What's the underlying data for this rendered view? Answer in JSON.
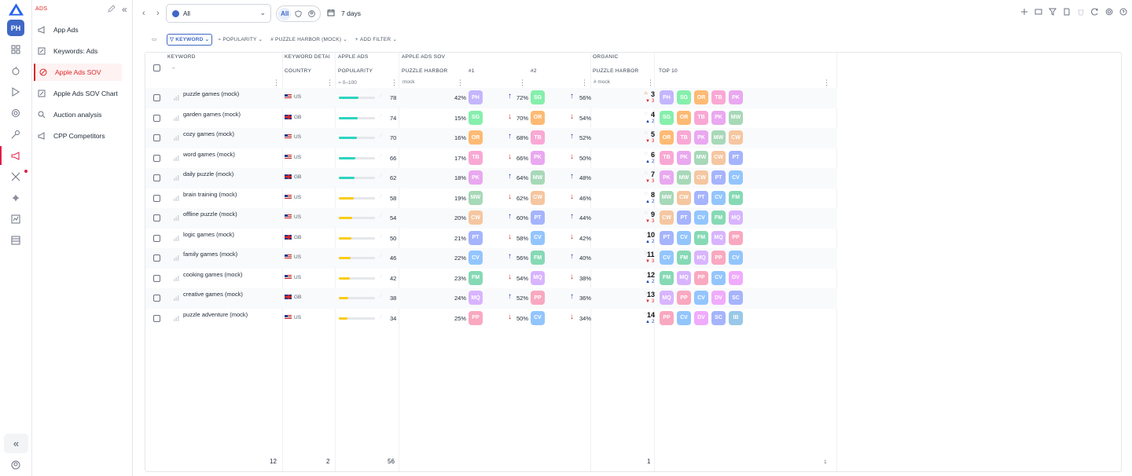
{
  "sidebar": {
    "header": "ADS",
    "items": [
      {
        "label": "App Ads",
        "icon": "megaphone-icon"
      },
      {
        "label": "Keywords: Ads",
        "icon": "edit-icon"
      },
      {
        "label": "Apple Ads SOV",
        "icon": "target-icon",
        "active": true
      },
      {
        "label": "Apple Ads SOV Chart",
        "icon": "edit-icon"
      },
      {
        "label": "Auction analysis",
        "icon": "search-icon"
      },
      {
        "label": "CPP Competitors",
        "icon": "megaphone-icon"
      }
    ]
  },
  "rail": {
    "avatar": "PH"
  },
  "topbar": {
    "scope_value": "All",
    "segment_all": "All",
    "date_range": "7 days"
  },
  "filters": {
    "keyword": "KEYWORD",
    "popularity": "POPULARITY",
    "puzzle_harbor": "PUZZLE HARBOR (MOCK)",
    "add_filter": "ADD FILTER"
  },
  "grid": {
    "groups": {
      "apple_ads": "APPLE ADS",
      "apple_ads_sov": "APPLE ADS SOV",
      "organic": "ORGANIC"
    },
    "headers": {
      "keyword": "KEYWORD",
      "keyword_details": "KEYWORD DETAI",
      "country": "COUNTRY",
      "popularity": "POPULARITY",
      "puzzle_harbor": "PUZZLE HARBOR",
      "rank1": "#1",
      "rank2": "#2",
      "organic_puzzle_harbor": "PUZZLE HARBOR",
      "top10": "TOP 10"
    },
    "subheaders": {
      "keyword_sort": "–",
      "popularity_range": "0–100",
      "sov_label": "mock",
      "organic_label": "mock"
    },
    "rows": [
      {
        "keyword": "puzzle games (mock)",
        "country": "US",
        "flag": "us",
        "popularity": 78,
        "sov": "42%",
        "c1": "PH",
        "d1": "up",
        "v1": "72%",
        "c2": "SG",
        "d2": "up",
        "v2": "56%",
        "rank": "3",
        "rankicon": "fire",
        "move": "3",
        "movedir": "down",
        "top10": [
          "PH",
          "SG",
          "OR",
          "TB",
          "PK"
        ]
      },
      {
        "keyword": "garden games (mock)",
        "country": "GB",
        "flag": "gb",
        "popularity": 74,
        "sov": "15%",
        "c1": "SG",
        "d1": "down",
        "v1": "70%",
        "c2": "OR",
        "d2": "down",
        "v2": "54%",
        "rank": "4",
        "rankicon": "star",
        "move": "2",
        "movedir": "up",
        "top10": [
          "SG",
          "OR",
          "TB",
          "PK",
          "MW"
        ]
      },
      {
        "keyword": "cozy games (mock)",
        "country": "US",
        "flag": "us",
        "popularity": 70,
        "sov": "16%",
        "c1": "OR",
        "d1": "up",
        "v1": "68%",
        "c2": "TB",
        "d2": "up",
        "v2": "52%",
        "rank": "5",
        "rankicon": "star",
        "move": "3",
        "movedir": "down",
        "top10": [
          "OR",
          "TB",
          "PK",
          "MW",
          "CW"
        ]
      },
      {
        "keyword": "word games (mock)",
        "country": "US",
        "flag": "us",
        "popularity": 66,
        "sov": "17%",
        "c1": "TB",
        "d1": "down",
        "v1": "66%",
        "c2": "PK",
        "d2": "down",
        "v2": "50%",
        "rank": "6",
        "rankicon": "star",
        "move": "2",
        "movedir": "up",
        "top10": [
          "TB",
          "PK",
          "MW",
          "CW",
          "PT"
        ]
      },
      {
        "keyword": "daily puzzle (mock)",
        "country": "GB",
        "flag": "gb",
        "popularity": 62,
        "sov": "18%",
        "c1": "PK",
        "d1": "up",
        "v1": "64%",
        "c2": "MW",
        "d2": "up",
        "v2": "48%",
        "rank": "7",
        "rankicon": "star",
        "move": "3",
        "movedir": "down",
        "top10": [
          "PK",
          "MW",
          "CW",
          "PT",
          "CV"
        ]
      },
      {
        "keyword": "brain training (mock)",
        "country": "US",
        "flag": "us",
        "popularity": 58,
        "sov": "19%",
        "c1": "MW",
        "d1": "down",
        "v1": "62%",
        "c2": "CW",
        "d2": "down",
        "v2": "46%",
        "rank": "8",
        "rankicon": "star",
        "move": "2",
        "movedir": "up",
        "top10": [
          "MW",
          "CW",
          "PT",
          "CV",
          "FM"
        ]
      },
      {
        "keyword": "offline puzzle (mock)",
        "country": "US",
        "flag": "us",
        "popularity": 54,
        "sov": "20%",
        "c1": "CW",
        "d1": "up",
        "v1": "60%",
        "c2": "PT",
        "d2": "up",
        "v2": "44%",
        "rank": "9",
        "rankicon": "star",
        "move": "3",
        "movedir": "down",
        "top10": [
          "CW",
          "PT",
          "CV",
          "FM",
          "MQ"
        ]
      },
      {
        "keyword": "logic games (mock)",
        "country": "GB",
        "flag": "gb",
        "popularity": 50,
        "sov": "21%",
        "c1": "PT",
        "d1": "down",
        "v1": "58%",
        "c2": "CV",
        "d2": "down",
        "v2": "42%",
        "rank": "10",
        "rankicon": "star",
        "move": "2",
        "movedir": "up",
        "top10": [
          "PT",
          "CV",
          "FM",
          "MQ",
          "PP"
        ]
      },
      {
        "keyword": "family games (mock)",
        "country": "US",
        "flag": "us",
        "popularity": 46,
        "sov": "22%",
        "c1": "CV",
        "d1": "up",
        "v1": "56%",
        "c2": "FM",
        "d2": "up",
        "v2": "40%",
        "rank": "11",
        "rankicon": "star",
        "move": "3",
        "movedir": "down",
        "top10": [
          "CV",
          "FM",
          "MQ",
          "PP",
          "CV"
        ]
      },
      {
        "keyword": "cooking games (mock)",
        "country": "US",
        "flag": "us",
        "popularity": 42,
        "sov": "23%",
        "c1": "FM",
        "d1": "down",
        "v1": "54%",
        "c2": "MQ",
        "d2": "down",
        "v2": "38%",
        "rank": "12",
        "rankicon": "star",
        "move": "2",
        "movedir": "up",
        "top10": [
          "FM",
          "MQ",
          "PP",
          "CV",
          "DV"
        ]
      },
      {
        "keyword": "creative games (mock)",
        "country": "GB",
        "flag": "gb",
        "popularity": 38,
        "sov": "24%",
        "c1": "MQ",
        "d1": "up",
        "v1": "52%",
        "c2": "PP",
        "d2": "up",
        "v2": "36%",
        "rank": "13",
        "rankicon": "star",
        "move": "3",
        "movedir": "down",
        "top10": [
          "MQ",
          "PP",
          "CV",
          "DV",
          "SC"
        ]
      },
      {
        "keyword": "puzzle adventure (mock)",
        "country": "US",
        "flag": "us",
        "popularity": 34,
        "sov": "25%",
        "c1": "PP",
        "d1": "down",
        "v1": "50%",
        "c2": "CV",
        "d2": "down",
        "v2": "34%",
        "rank": "14",
        "rankicon": "star",
        "move": "2",
        "movedir": "up",
        "top10": [
          "PP",
          "CV",
          "DV",
          "SC",
          "IB"
        ]
      }
    ],
    "footer": {
      "keywords": "12",
      "countries": "2",
      "popularity": "56",
      "organic": "1",
      "top10": "1"
    }
  },
  "chip_colors": {
    "PH": "#c4b5fd",
    "SG": "#86efac",
    "OR": "#fdba74",
    "TB": "#f9a8d4",
    "PK": "#e9a8f0",
    "MW": "#a7d8b8",
    "CW": "#f5c6a0",
    "PT": "#a5b4fc",
    "CV": "#93c5fd",
    "FM": "#86d9b5",
    "MQ": "#d8b4fe",
    "PP": "#f9a8c0",
    "DV": "#f0abfc",
    "SC": "#a5b4fc",
    "IB": "#99c8e8"
  },
  "colors": {
    "accent": "#3f68c6",
    "active": "#dc2626",
    "up_arrow": "#1e40af",
    "down_arrow": "#dc2626",
    "pop_high": "#2dd4bf",
    "pop_low": "#facc15"
  }
}
